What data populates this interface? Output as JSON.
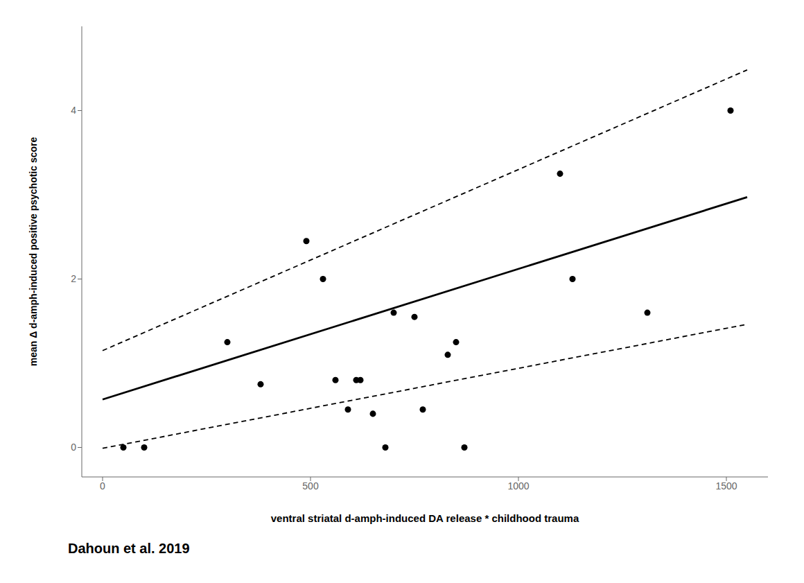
{
  "chart_data": {
    "type": "scatter",
    "x_label": "ventral striatal d-amph-induced DA release * childhood trauma",
    "y_label": "mean Δ d-amph-induced positive psychotic score",
    "annotation": "Dahoun et al. 2019",
    "xlim": [
      -50,
      1600
    ],
    "ylim": [
      -0.35,
      5.0
    ],
    "xticks": [
      0,
      500,
      1000,
      1500
    ],
    "yticks": [
      0,
      2,
      4
    ],
    "grid": false,
    "series": [
      {
        "type": "scatter",
        "color": "#000000",
        "marker": "o",
        "x": [
          50,
          100,
          300,
          380,
          490,
          530,
          560,
          590,
          610,
          620,
          650,
          680,
          700,
          750,
          770,
          830,
          850,
          870,
          1100,
          1130,
          1310,
          1510
        ],
        "values": [
          0.0,
          0.0,
          1.25,
          0.75,
          2.45,
          2.0,
          0.8,
          0.45,
          0.8,
          0.8,
          0.4,
          0.0,
          1.6,
          1.55,
          0.45,
          1.1,
          1.25,
          0.0,
          3.25,
          2.0,
          1.6,
          4.0
        ]
      },
      {
        "type": "line",
        "color": "#000000",
        "line_style": "solid",
        "x": [
          0,
          1550
        ],
        "values": [
          0.57,
          2.9725
        ]
      },
      {
        "type": "line",
        "color": "#000000",
        "line_style": "dashed",
        "x": [
          0,
          1550
        ],
        "values": [
          1.15,
          4.4825
        ]
      },
      {
        "type": "line",
        "color": "#000000",
        "line_style": "dashed",
        "x": [
          0,
          1550
        ],
        "values": [
          -0.01,
          1.4625
        ]
      }
    ]
  }
}
